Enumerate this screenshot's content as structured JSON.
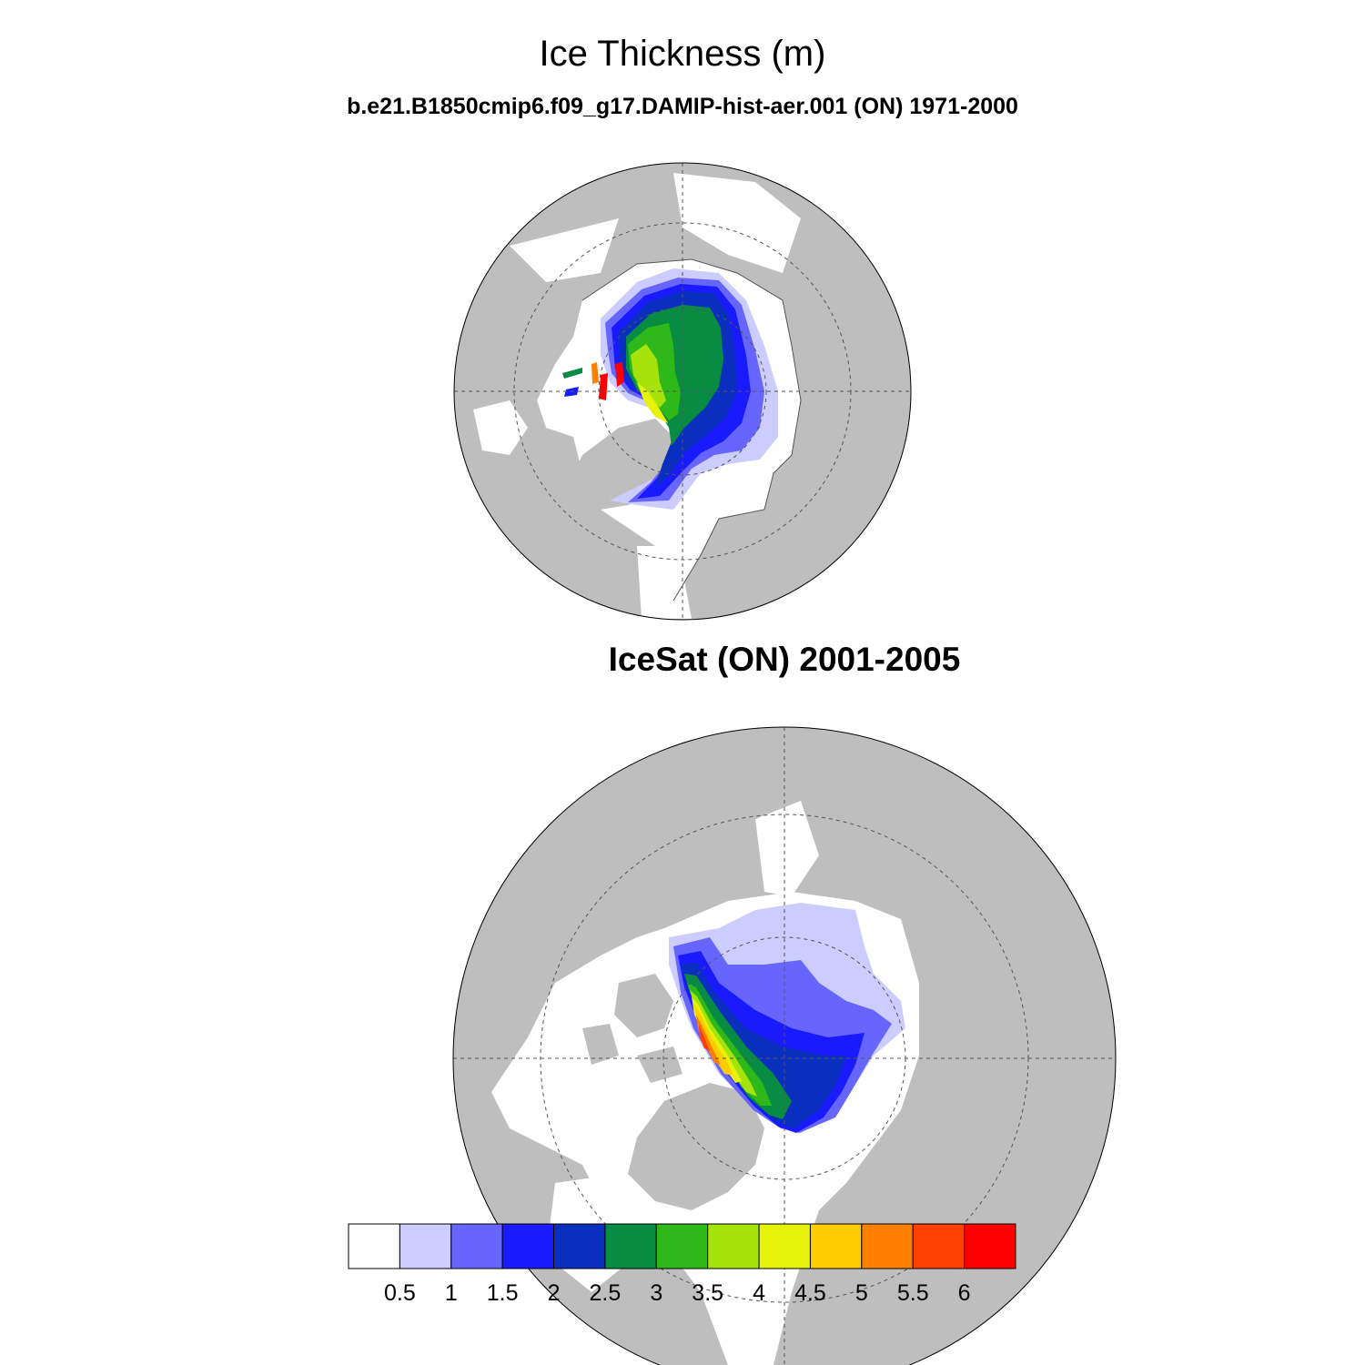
{
  "figure": {
    "title": "Ice Thickness (m)",
    "model_panel_title": "b.e21.B1850cmip6.f09_g17.DAMIP-hist-aer.001 (ON) 1971-2000",
    "obs_panel_title": "IceSat (ON) 2001-2005"
  },
  "colorbar": {
    "levels": [
      "0.5",
      "1",
      "1.5",
      "2",
      "2.5",
      "3",
      "3.5",
      "4",
      "4.5",
      "5",
      "5.5",
      "6"
    ],
    "colors": [
      "#fefefe",
      "#ccccff",
      "#6666ff",
      "#1a1aff",
      "#0a2fbf",
      "#088c43",
      "#2eb81a",
      "#a6e30c",
      "#e6f20a",
      "#ffcc00",
      "#ff8000",
      "#ff4000",
      "#ff0000"
    ]
  },
  "colors": {
    "land": "#bebebe",
    "ocean": "#ffffff",
    "grid": "#555555"
  }
}
